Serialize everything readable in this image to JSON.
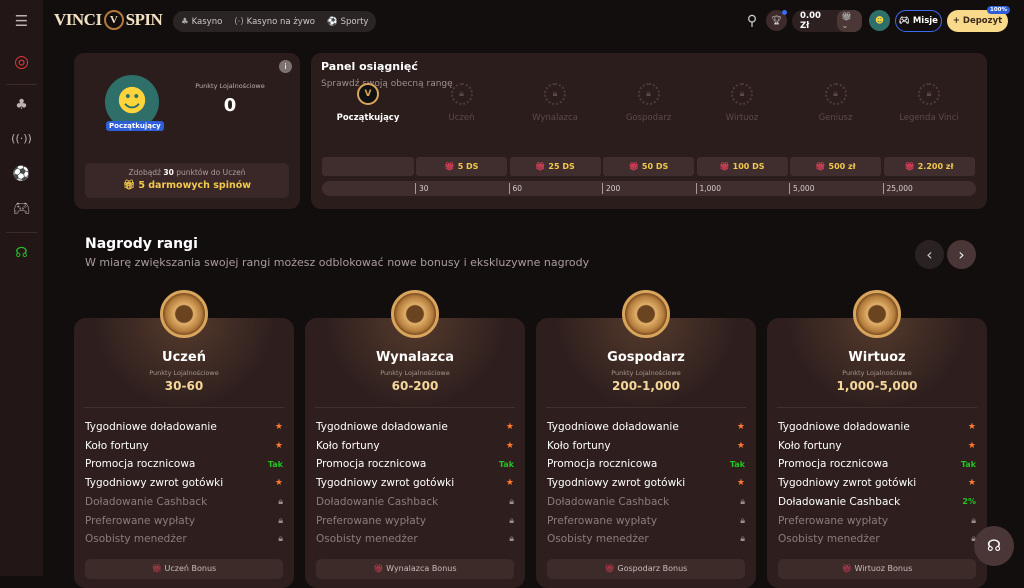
{
  "header": {
    "logo": "VINCI SPIN",
    "nav": [
      {
        "icon": "cherry-icon",
        "label": "Kasyno"
      },
      {
        "icon": "live-icon",
        "label": "Kasyno na żywo"
      },
      {
        "icon": "soccer-ball-icon",
        "label": "Sporty"
      }
    ],
    "balance": "0.00 Zł",
    "missions": "Misje",
    "deposit": "Depozyt",
    "deposit_badge": "100%"
  },
  "sidebar": {
    "items": [
      "darts-icon",
      "cherry-icon",
      "live-icon",
      "soccer-ball-icon",
      "gamepad-icon",
      "support-icon"
    ]
  },
  "loyalty": {
    "label": "Punkty Lojalnościowe",
    "points": "0",
    "rank_badge": "Początkujący",
    "goal_pre": "Zdobądź",
    "goal_points": "30",
    "goal_post": "punktów do Uczeń",
    "reward": "5 darmowych spinów"
  },
  "panel": {
    "title": "Panel osiągnięć",
    "subtitle": "Sprawdź swoją obecną rangę",
    "ranks": [
      "Początkujący",
      "Uczeń",
      "Wynalazca",
      "Gospodarz",
      "Wirtuoz",
      "Geniusz",
      "Legenda Vinci"
    ],
    "rewards": [
      "5 DS",
      "25 DS",
      "50 DS",
      "100 DS",
      "500 zł",
      "2.200 zł"
    ],
    "thresholds": [
      "30",
      "60",
      "200",
      "1,000",
      "5,000",
      "25,000"
    ]
  },
  "section": {
    "title": "Nagrody rangi",
    "subtitle": "W miarę zwiększania swojej rangi możesz odblokować nowe bonusy i ekskluzywne nagrody"
  },
  "cards": [
    {
      "name": "Uczeń",
      "points_label": "Punkty Lojalnościowe",
      "range": "30-60",
      "bonus": "Uczeń Bonus",
      "features": [
        {
          "label": "Tygodniowe doładowanie",
          "value": "★",
          "on": true
        },
        {
          "label": "Koło fortuny",
          "value": "★",
          "on": true
        },
        {
          "label": "Promocja rocznicowa",
          "value": "Tak",
          "on": true
        },
        {
          "label": "Tygodniowy zwrot gotówki",
          "value": "★",
          "on": true
        },
        {
          "label": "Doładowanie Cashback",
          "value": "🔒",
          "on": false
        },
        {
          "label": "Preferowane wypłaty",
          "value": "🔒",
          "on": false
        },
        {
          "label": "Osobisty menedżer",
          "value": "🔒",
          "on": false
        }
      ]
    },
    {
      "name": "Wynalazca",
      "points_label": "Punkty Lojalnościowe",
      "range": "60-200",
      "bonus": "Wynalazca Bonus",
      "features": [
        {
          "label": "Tygodniowe doładowanie",
          "value": "★",
          "on": true
        },
        {
          "label": "Koło fortuny",
          "value": "★",
          "on": true
        },
        {
          "label": "Promocja rocznicowa",
          "value": "Tak",
          "on": true
        },
        {
          "label": "Tygodniowy zwrot gotówki",
          "value": "★",
          "on": true
        },
        {
          "label": "Doładowanie Cashback",
          "value": "🔒",
          "on": false
        },
        {
          "label": "Preferowane wypłaty",
          "value": "🔒",
          "on": false
        },
        {
          "label": "Osobisty menedżer",
          "value": "🔒",
          "on": false
        }
      ]
    },
    {
      "name": "Gospodarz",
      "points_label": "Punkty Lojalnościowe",
      "range": "200-1,000",
      "bonus": "Gospodarz Bonus",
      "features": [
        {
          "label": "Tygodniowe doładowanie",
          "value": "★",
          "on": true
        },
        {
          "label": "Koło fortuny",
          "value": "★",
          "on": true
        },
        {
          "label": "Promocja rocznicowa",
          "value": "Tak",
          "on": true
        },
        {
          "label": "Tygodniowy zwrot gotówki",
          "value": "★",
          "on": true
        },
        {
          "label": "Doładowanie Cashback",
          "value": "🔒",
          "on": false
        },
        {
          "label": "Preferowane wypłaty",
          "value": "🔒",
          "on": false
        },
        {
          "label": "Osobisty menedżer",
          "value": "🔒",
          "on": false
        }
      ]
    },
    {
      "name": "Wirtuoz",
      "points_label": "Punkty Lojalnościowe",
      "range": "1,000-5,000",
      "bonus": "Wirtuoz Bonus",
      "features": [
        {
          "label": "Tygodniowe doładowanie",
          "value": "★",
          "on": true
        },
        {
          "label": "Koło fortuny",
          "value": "★",
          "on": true
        },
        {
          "label": "Promocja rocznicowa",
          "value": "Tak",
          "on": true
        },
        {
          "label": "Tygodniowy zwrot gotówki",
          "value": "★",
          "on": true
        },
        {
          "label": "Doładowanie Cashback",
          "value": "2%",
          "on": true
        },
        {
          "label": "Preferowane wypłaty",
          "value": "🔒",
          "on": false
        },
        {
          "label": "Osobisty menedżer",
          "value": "🔒",
          "on": false
        }
      ]
    }
  ],
  "colors": {
    "accent": "#f2c94c",
    "star": "#ff7a2e",
    "yes": "#22c322",
    "badge": "#2f5fd8"
  }
}
